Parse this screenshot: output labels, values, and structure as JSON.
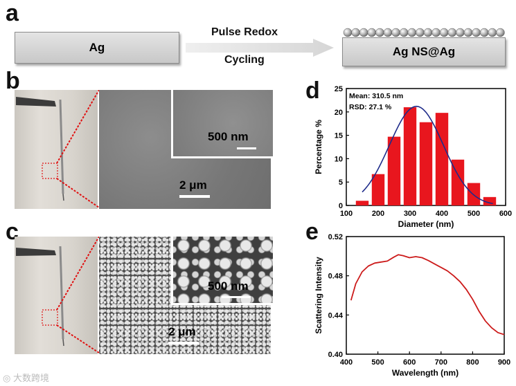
{
  "panels": {
    "a": "a",
    "b": "b",
    "c": "c",
    "d": "d",
    "e": "e"
  },
  "schematic": {
    "left_box": "Ag",
    "arrow_top": "Pulse Redox",
    "arrow_bottom": "Cycling",
    "right_box": "Ag NS@Ag"
  },
  "sem": {
    "b_main_scale": "2 μm",
    "b_inset_scale": "500 nm",
    "c_main_scale": "2 μm",
    "c_inset_scale": "500 nm"
  },
  "watermark": "大数跨境",
  "colors": {
    "bar": "#e8161e",
    "fit": "#1e2b8a",
    "spectrum": "#cc1a1a"
  },
  "chart_data": [
    {
      "type": "bar",
      "panel": "d",
      "xlabel": "Diameter (nm)",
      "ylabel": "Percentage %",
      "xlim": [
        100,
        600
      ],
      "ylim": [
        0,
        25
      ],
      "xticks": [
        100,
        200,
        300,
        400,
        500,
        600
      ],
      "yticks": [
        0,
        5,
        10,
        15,
        20,
        25
      ],
      "bin_width": 50,
      "bin_centers": [
        150,
        200,
        250,
        300,
        350,
        400,
        450,
        500,
        550
      ],
      "values": [
        1,
        6.7,
        14.7,
        21,
        17.8,
        19.8,
        9.8,
        4.8,
        1.8
      ],
      "fit": {
        "type": "gaussian",
        "mean": 320,
        "sd": 85,
        "peak": 21.2
      },
      "annotations": [
        "Mean: 310.5 nm",
        "RSD: 27.1 %"
      ]
    },
    {
      "type": "line",
      "panel": "e",
      "xlabel": "Wavelength (nm)",
      "ylabel": "Scattering Intensity",
      "xlim": [
        400,
        900
      ],
      "ylim": [
        0.4,
        0.52
      ],
      "xticks": [
        400,
        500,
        600,
        700,
        800,
        900
      ],
      "yticks": [
        0.4,
        0.44,
        0.48,
        0.52
      ],
      "x": [
        415,
        430,
        450,
        470,
        490,
        510,
        530,
        550,
        565,
        580,
        600,
        620,
        640,
        660,
        680,
        700,
        720,
        740,
        760,
        780,
        800,
        820,
        840,
        860,
        880,
        900
      ],
      "y": [
        0.455,
        0.472,
        0.484,
        0.49,
        0.493,
        0.494,
        0.495,
        0.499,
        0.5015,
        0.5005,
        0.4985,
        0.4995,
        0.4985,
        0.4955,
        0.492,
        0.4885,
        0.485,
        0.48,
        0.474,
        0.466,
        0.456,
        0.444,
        0.434,
        0.427,
        0.422,
        0.42
      ]
    }
  ]
}
